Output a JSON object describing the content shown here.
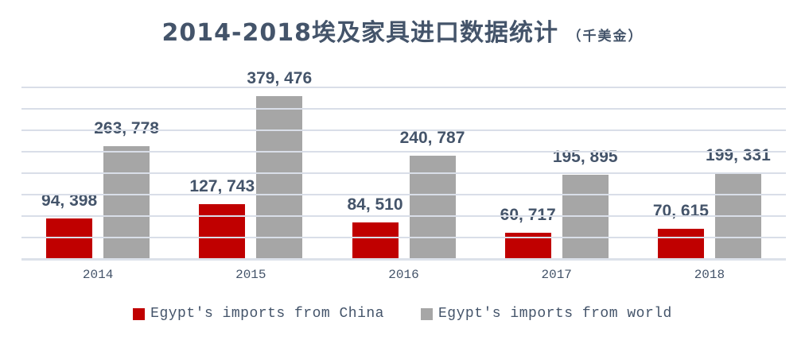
{
  "title": {
    "main": "2014-2018埃及家具进口数据统计",
    "suffix": "（千美金）"
  },
  "colors": {
    "background": "#FFFFFF",
    "text": "#44546A",
    "series_china": "#C00000",
    "series_world": "#A6A6A6",
    "gridline": "#D9DEE8"
  },
  "chart_data": {
    "type": "bar",
    "title": "2014-2018埃及家具进口数据统计（千美金）",
    "unit": "千美金",
    "categories": [
      "2014",
      "2015",
      "2016",
      "2017",
      "2018"
    ],
    "series": [
      {
        "name": "Egypt's imports from China",
        "key": "china",
        "color": "#C00000",
        "values": [
          94398,
          127743,
          84510,
          60717,
          70615
        ],
        "value_labels": [
          "94, 398",
          "127, 743",
          "84, 510",
          "60, 717",
          "70, 615"
        ]
      },
      {
        "name": "Egypt's imports from world",
        "key": "world",
        "color": "#A6A6A6",
        "values": [
          263778,
          379476,
          240787,
          195895,
          199331
        ],
        "value_labels": [
          "263, 778",
          "379, 476",
          "240, 787",
          "195, 895",
          "199, 331"
        ]
      }
    ],
    "ylim": [
      0,
      400000
    ],
    "gridline_interval": 50000,
    "grid": true,
    "gridlines_over_bars": true,
    "y_axis_labels_visible": false,
    "xlabel": "",
    "ylabel": "",
    "legend_position": "bottom"
  },
  "legend": {
    "items": [
      {
        "label": "Egypt's imports from China",
        "key": "china",
        "color": "#C00000"
      },
      {
        "label": "Egypt's imports from world",
        "key": "world",
        "color": "#A6A6A6"
      }
    ]
  }
}
